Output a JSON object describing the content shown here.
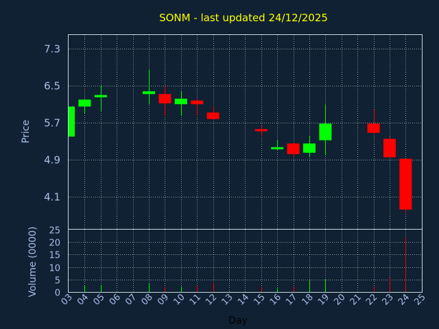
{
  "chart_data": {
    "type": "candlestick",
    "title": "SONM - last updated 24/12/2025",
    "xlabel": "Day",
    "price_panel": {
      "ylabel": "Price",
      "ylim": [
        3.4,
        7.6
      ],
      "yticks": [
        "4.1",
        "4.9",
        "5.7",
        "6.5",
        "7.3"
      ]
    },
    "volume_panel": {
      "ylabel": "Volume (0000)",
      "ylim": [
        0,
        25
      ],
      "yticks": [
        "0",
        "5",
        "10",
        "15",
        "20",
        "25"
      ]
    },
    "x_ticks": [
      "03",
      "04",
      "05",
      "06",
      "07",
      "08",
      "09",
      "10",
      "11",
      "12",
      "13",
      "14",
      "15",
      "16",
      "17",
      "18",
      "19",
      "20",
      "21",
      "22",
      "23",
      "24",
      "25"
    ],
    "candles": [
      {
        "day": "03",
        "open": 5.4,
        "high": 6.06,
        "low": 5.4,
        "close": 6.05,
        "volume": 0
      },
      {
        "day": "04",
        "open": 6.05,
        "high": 6.2,
        "low": 5.9,
        "close": 6.2,
        "volume": 2.5
      },
      {
        "day": "05",
        "open": 6.25,
        "high": 6.5,
        "low": 5.95,
        "close": 6.3,
        "volume": 2.8
      },
      {
        "day": "08",
        "open": 6.32,
        "high": 6.85,
        "low": 6.1,
        "close": 6.38,
        "volume": 3.5
      },
      {
        "day": "09",
        "open": 6.32,
        "high": 6.5,
        "low": 5.85,
        "close": 6.12,
        "volume": 2.0
      },
      {
        "day": "10",
        "open": 6.1,
        "high": 6.38,
        "low": 5.85,
        "close": 6.22,
        "volume": 2.2
      },
      {
        "day": "11",
        "open": 6.18,
        "high": 6.22,
        "low": 5.85,
        "close": 6.1,
        "volume": 2.5
      },
      {
        "day": "12",
        "open": 5.92,
        "high": 6.05,
        "low": 5.75,
        "close": 5.78,
        "volume": 3.8
      },
      {
        "day": "15",
        "open": 5.56,
        "high": 5.62,
        "low": 5.4,
        "close": 5.52,
        "volume": 2.0
      },
      {
        "day": "16",
        "open": 5.14,
        "high": 5.32,
        "low": 5.1,
        "close": 5.17,
        "volume": 1.5
      },
      {
        "day": "17",
        "open": 5.25,
        "high": 5.28,
        "low": 4.95,
        "close": 5.02,
        "volume": 2.2
      },
      {
        "day": "18",
        "open": 5.05,
        "high": 5.42,
        "low": 4.95,
        "close": 5.25,
        "volume": 4.8
      },
      {
        "day": "19",
        "open": 5.32,
        "high": 6.1,
        "low": 5.0,
        "close": 5.68,
        "volume": 5.2
      },
      {
        "day": "22",
        "open": 5.68,
        "high": 5.98,
        "low": 5.45,
        "close": 5.48,
        "volume": 2.2
      },
      {
        "day": "23",
        "open": 5.35,
        "high": 5.4,
        "low": 4.95,
        "close": 4.95,
        "volume": 5.8
      },
      {
        "day": "24",
        "open": 4.92,
        "high": 4.92,
        "low": 3.75,
        "close": 3.82,
        "volume": 22.0
      }
    ],
    "colors": {
      "background": "#0f2133",
      "up": "#00ff00",
      "down": "#ff0000",
      "grid": "#ffffff",
      "frame": "#cfd6e0",
      "tick_text": "#a9bfe6",
      "title": "#ffff00"
    },
    "grid": true
  }
}
